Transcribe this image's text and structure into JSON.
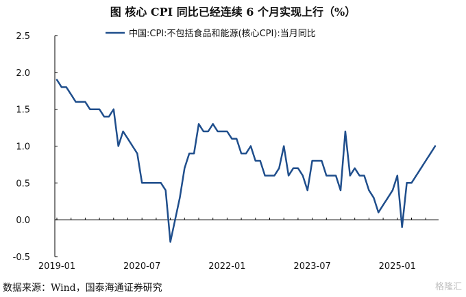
{
  "title": "图   核心 CPI 同比已经连续 6 个月实现上行（%）",
  "source": "数据来源：Wind，国泰海通证券研究",
  "watermark": "格隆汇",
  "chart_data": {
    "type": "line",
    "title": "图   核心 CPI 同比已经连续 6 个月实现上行（%）",
    "xlabel": "",
    "ylabel": "",
    "ylim": [
      -0.5,
      2.5
    ],
    "yticks": [
      -0.5,
      0.0,
      0.5,
      1.0,
      1.5,
      2.0,
      2.5
    ],
    "yticks_labels": [
      "-0.5",
      "0.0",
      "0.5",
      "1.0",
      "1.5",
      "2.0",
      "2.5"
    ],
    "xticks": [
      "2019-01",
      "2020-07",
      "2022-01",
      "2023-07",
      "2025-01"
    ],
    "grid": false,
    "legend_position": "top",
    "line_color": "#1f4e8c",
    "series": [
      {
        "name": "中国:CPI:不包括食品和能源(核心CPI):当月同比",
        "x": [
          "2019-01",
          "2019-02",
          "2019-03",
          "2019-04",
          "2019-05",
          "2019-06",
          "2019-07",
          "2019-08",
          "2019-09",
          "2019-10",
          "2019-11",
          "2019-12",
          "2020-01",
          "2020-02",
          "2020-03",
          "2020-04",
          "2020-05",
          "2020-06",
          "2020-07",
          "2020-08",
          "2020-09",
          "2020-10",
          "2020-11",
          "2020-12",
          "2021-01",
          "2021-02",
          "2021-03",
          "2021-04",
          "2021-05",
          "2021-06",
          "2021-07",
          "2021-08",
          "2021-09",
          "2021-10",
          "2021-11",
          "2021-12",
          "2022-01",
          "2022-02",
          "2022-03",
          "2022-04",
          "2022-05",
          "2022-06",
          "2022-07",
          "2022-08",
          "2022-09",
          "2022-10",
          "2022-11",
          "2022-12",
          "2023-01",
          "2023-02",
          "2023-03",
          "2023-04",
          "2023-05",
          "2023-06",
          "2023-07",
          "2023-08",
          "2023-09",
          "2023-10",
          "2023-11",
          "2023-12",
          "2024-01",
          "2024-02",
          "2024-03",
          "2024-04",
          "2024-05",
          "2024-06",
          "2024-07",
          "2024-08",
          "2024-09",
          "2024-10",
          "2024-11",
          "2024-12",
          "2025-01",
          "2025-02",
          "2025-03",
          "2025-04",
          "2025-05",
          "2025-06",
          "2025-07",
          "2025-08",
          "2025-09"
        ],
        "values": [
          1.9,
          1.8,
          1.8,
          1.7,
          1.6,
          1.6,
          1.6,
          1.5,
          1.5,
          1.5,
          1.4,
          1.4,
          1.5,
          1.0,
          1.2,
          1.1,
          1.0,
          0.9,
          0.5,
          0.5,
          0.5,
          0.5,
          0.5,
          0.4,
          -0.3,
          0.0,
          0.3,
          0.7,
          0.9,
          0.9,
          1.3,
          1.2,
          1.2,
          1.3,
          1.2,
          1.2,
          1.2,
          1.1,
          1.1,
          0.9,
          0.9,
          1.0,
          0.8,
          0.8,
          0.6,
          0.6,
          0.6,
          0.7,
          1.0,
          0.6,
          0.7,
          0.7,
          0.6,
          0.4,
          0.8,
          0.8,
          0.8,
          0.6,
          0.6,
          0.6,
          0.4,
          1.2,
          0.6,
          0.7,
          0.6,
          0.6,
          0.4,
          0.3,
          0.1,
          0.2,
          0.3,
          0.4,
          0.6,
          -0.1,
          0.5,
          0.5,
          0.6,
          0.7,
          0.8,
          0.9,
          1.0
        ]
      }
    ]
  }
}
